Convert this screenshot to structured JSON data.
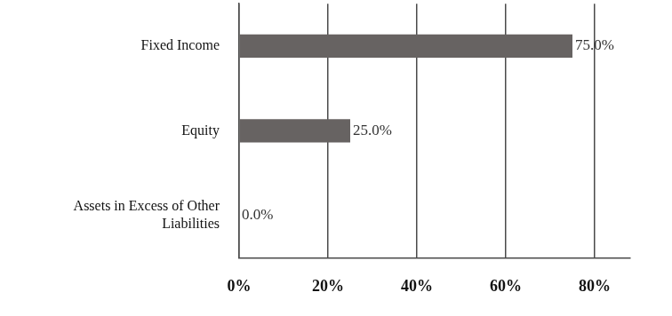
{
  "chart_data": {
    "type": "bar",
    "orientation": "horizontal",
    "categories": [
      "Fixed Income",
      "Equity",
      "Assets in Excess of Other Liabilities"
    ],
    "values": [
      75.0,
      25.0,
      0.0
    ],
    "value_labels": [
      "75.0%",
      "25.0%",
      "0.0%"
    ],
    "data_labels": true,
    "color": "#676362",
    "xlim": [
      0,
      88
    ],
    "xticks": [
      {
        "value": 0,
        "label": "0%"
      },
      {
        "value": 20,
        "label": "20%"
      },
      {
        "value": 40,
        "label": "40%"
      },
      {
        "value": 60,
        "label": "60%"
      },
      {
        "value": 80,
        "label": "80%"
      }
    ],
    "grid": true
  }
}
